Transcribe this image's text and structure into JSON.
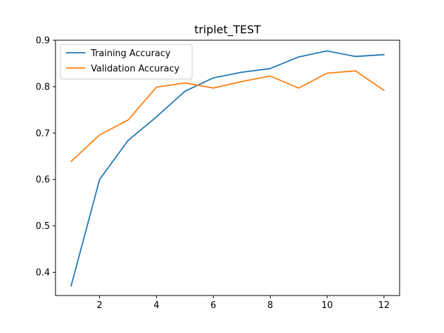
{
  "chart_data": {
    "type": "line",
    "title": "triplet_TEST",
    "xlabel": "",
    "ylabel": "",
    "x": [
      1,
      2,
      3,
      4,
      5,
      6,
      7,
      8,
      9,
      10,
      11,
      12
    ],
    "xlim": [
      0.45,
      12.55
    ],
    "ylim": [
      0.35,
      0.9
    ],
    "xticks": [
      2,
      4,
      6,
      8,
      10,
      12
    ],
    "yticks": [
      0.4,
      0.5,
      0.6,
      0.7,
      0.8,
      0.9
    ],
    "xtick_labels": [
      "2",
      "4",
      "6",
      "8",
      "10",
      "12"
    ],
    "ytick_labels": [
      "0.4",
      "0.5",
      "0.6",
      "0.7",
      "0.8",
      "0.9"
    ],
    "grid": false,
    "legend_position": "top-left",
    "series": [
      {
        "name": "Training Accuracy",
        "color": "#1f77b4",
        "values": [
          0.371,
          0.6,
          0.684,
          0.735,
          0.79,
          0.819,
          0.831,
          0.839,
          0.864,
          0.877,
          0.865,
          0.869
        ]
      },
      {
        "name": "Validation Accuracy",
        "color": "#ff7f0e",
        "values": [
          0.639,
          0.696,
          0.728,
          0.799,
          0.808,
          0.797,
          0.811,
          0.823,
          0.797,
          0.829,
          0.834,
          0.792
        ]
      }
    ]
  }
}
